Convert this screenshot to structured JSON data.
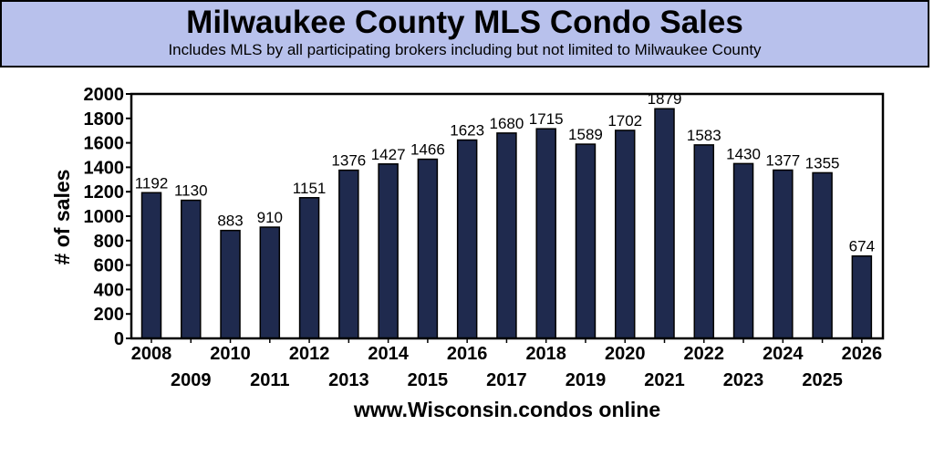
{
  "header": {
    "title": "Milwaukee County MLS Condo Sales",
    "subtitle": "Includes MLS by all participating brokers including but not limited to Milwaukee County"
  },
  "colors": {
    "bar": "#1f2a4e",
    "header_bg": "#b8c1ec"
  },
  "chart_data": {
    "type": "bar",
    "title": "Milwaukee County MLS Condo Sales",
    "subtitle": "Includes MLS by all participating brokers including but not limited to Milwaukee County",
    "xlabel": "www.Wisconsin.condos online",
    "ylabel": "# of sales",
    "ylim": [
      0,
      2000
    ],
    "yticks": [
      0,
      200,
      400,
      600,
      800,
      1000,
      1200,
      1400,
      1600,
      1800,
      2000
    ],
    "grid": false,
    "categories": [
      "2008",
      "2009",
      "2010",
      "2011",
      "2012",
      "2013",
      "2014",
      "2015",
      "2016",
      "2017",
      "2018",
      "2019",
      "2020",
      "2021",
      "2022",
      "2023",
      "2024",
      "2025",
      "2026"
    ],
    "values": [
      1192,
      1130,
      883,
      910,
      1151,
      1376,
      1427,
      1466,
      1623,
      1680,
      1715,
      1589,
      1702,
      1879,
      1583,
      1430,
      1377,
      1355,
      674
    ]
  }
}
